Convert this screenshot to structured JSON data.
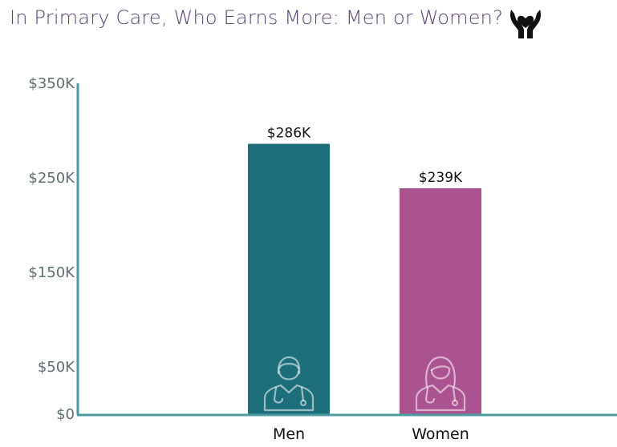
{
  "title": "In Primary Care, Who Earns More: Men or Women?",
  "title_icon": "hands-holding-heart-icon",
  "chart_data": {
    "type": "bar",
    "categories": [
      "Men",
      "Women"
    ],
    "values": [
      286,
      239
    ],
    "data_labels": [
      "$286K",
      "$239K"
    ],
    "bar_colors": [
      "#1b6e7a",
      "#ab5390"
    ],
    "bar_icons": [
      "male-doctor-icon",
      "female-doctor-icon"
    ],
    "ytick_values": [
      0,
      50,
      150,
      250,
      350
    ],
    "ytick_labels": [
      "$0",
      "$50K",
      "$150K",
      "$250K",
      "$350K"
    ],
    "ylim": [
      0,
      350
    ],
    "axis_color": "#4a9a9f",
    "grid": false,
    "legend": "none"
  }
}
